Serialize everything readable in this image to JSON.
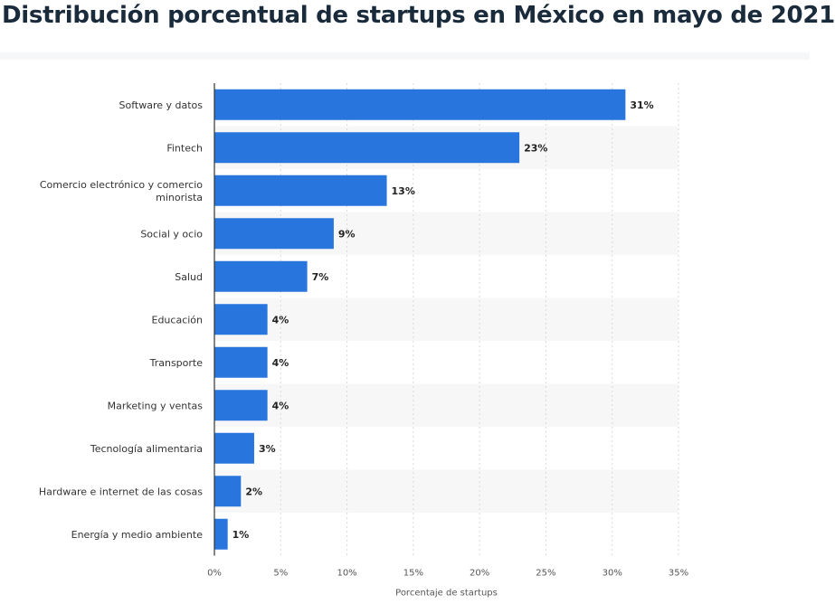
{
  "chart_data": {
    "type": "bar",
    "orientation": "horizontal",
    "title": "Distribución porcentual de startups en México en mayo de 2021",
    "categories": [
      "Software y datos",
      "Fintech",
      "Comercio electrónico y comercio minorista",
      "Social y ocio",
      "Salud",
      "Educación",
      "Transporte",
      "Marketing y ventas",
      "Tecnología alimentaria",
      "Hardware e internet de las cosas",
      "Energía y medio ambiente"
    ],
    "category_label_lines": [
      [
        "Software y datos"
      ],
      [
        "Fintech"
      ],
      [
        "Comercio electrónico y comercio",
        "minorista"
      ],
      [
        "Social y ocio"
      ],
      [
        "Salud"
      ],
      [
        "Educación"
      ],
      [
        "Transporte"
      ],
      [
        "Marketing y ventas"
      ],
      [
        "Tecnología alimentaria"
      ],
      [
        "Hardware e internet de las cosas"
      ],
      [
        "Energía y medio ambiente"
      ]
    ],
    "values": [
      31,
      23,
      13,
      9,
      7,
      4,
      4,
      4,
      3,
      2,
      1
    ],
    "value_labels": [
      "31%",
      "23%",
      "13%",
      "9%",
      "7%",
      "4%",
      "4%",
      "4%",
      "3%",
      "2%",
      "1%"
    ],
    "xlabel": "Porcentaje de startups",
    "ylabel": "",
    "xlim": [
      0,
      35
    ],
    "xticks": [
      0,
      5,
      10,
      15,
      20,
      25,
      30,
      35
    ],
    "xtick_labels": [
      "0%",
      "5%",
      "10%",
      "15%",
      "20%",
      "25%",
      "30%",
      "35%"
    ],
    "grid": true,
    "legend": "none",
    "colors": {
      "bar": "#2876dd",
      "band": "#f7f7f7",
      "grid": "#d9d9d9",
      "title": "#1a2b3c"
    }
  }
}
